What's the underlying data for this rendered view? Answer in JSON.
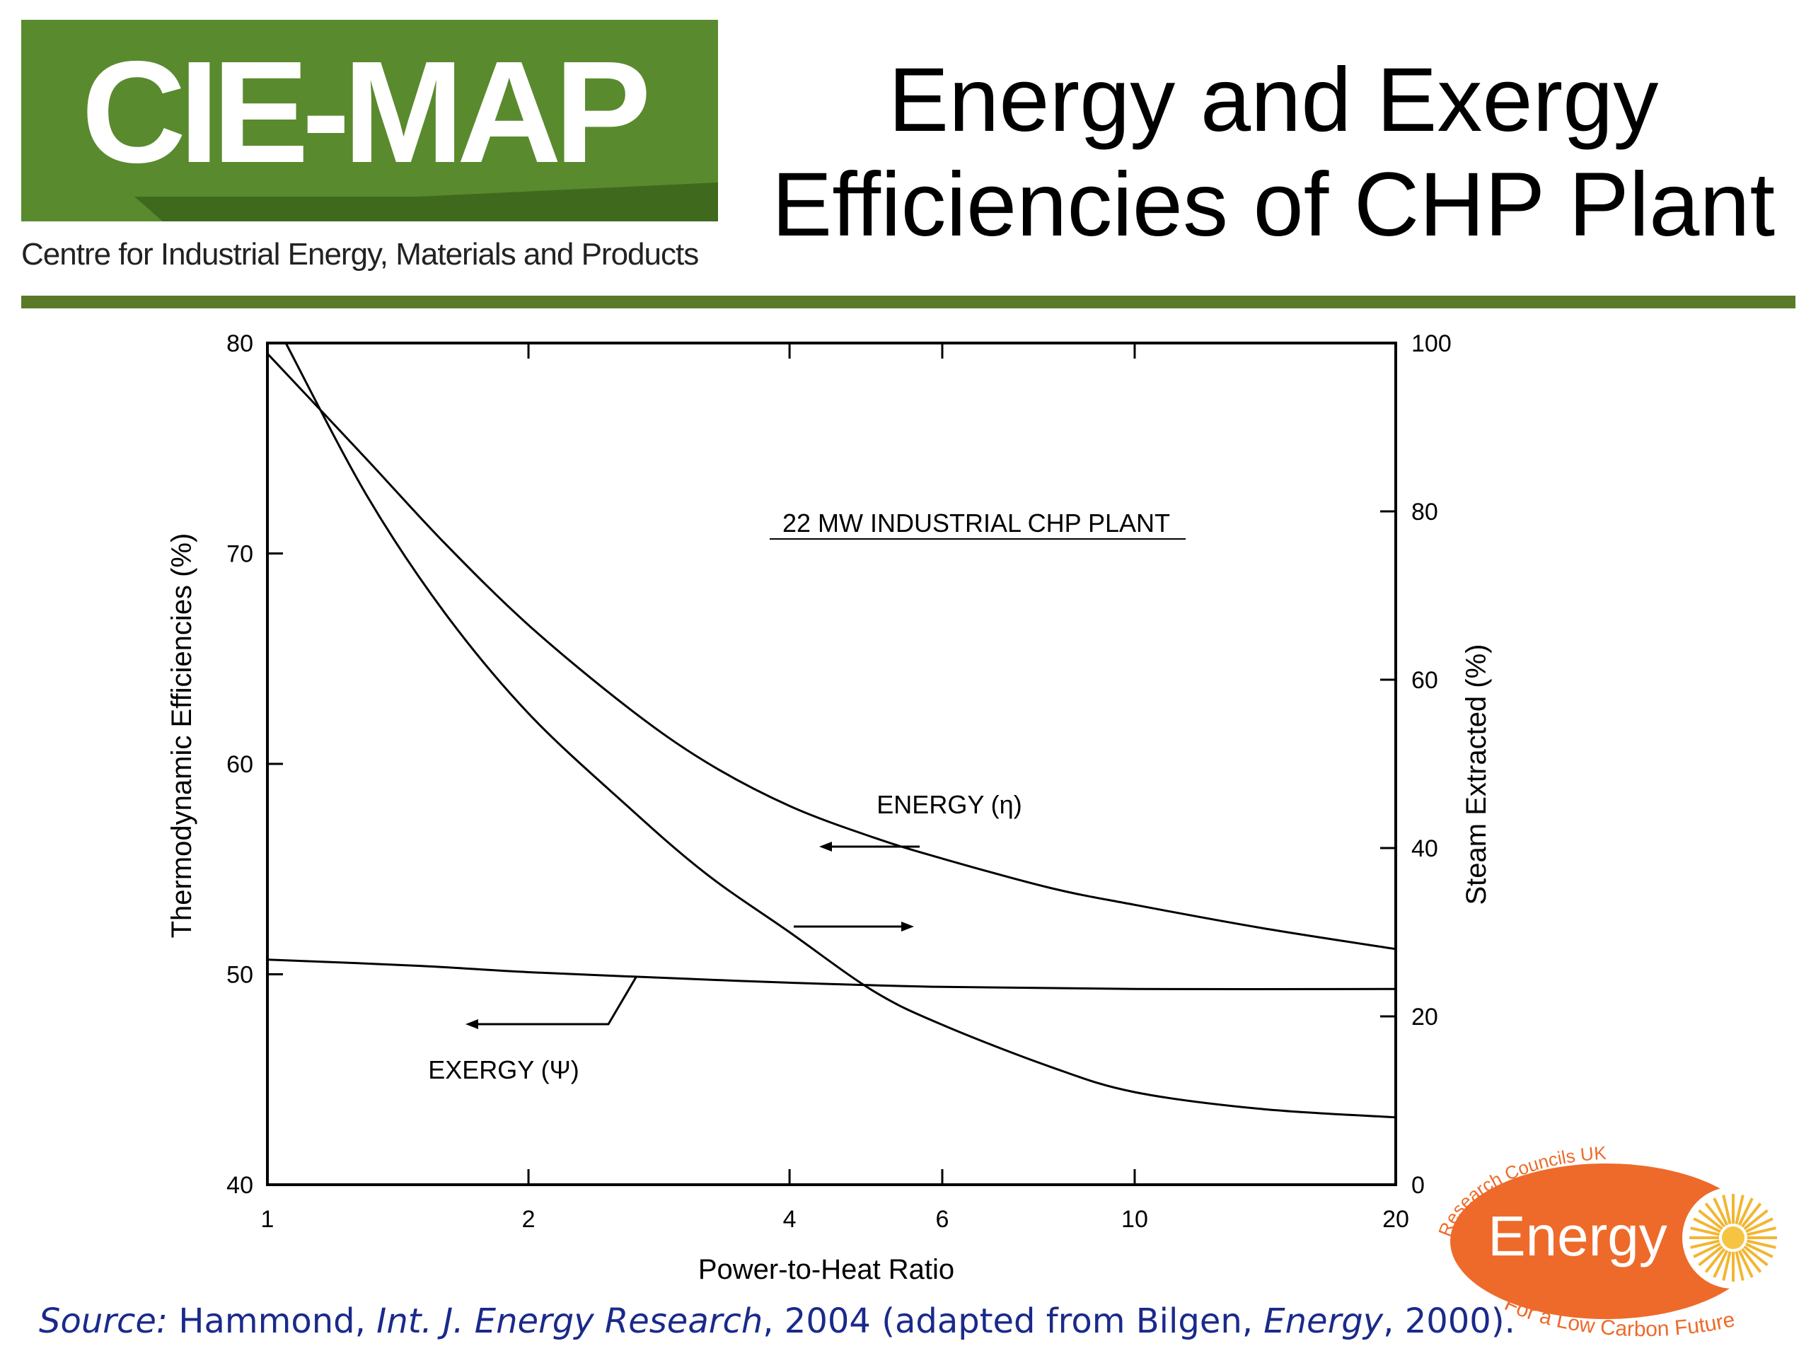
{
  "header": {
    "logo_text": "CIE-MAP",
    "logo_subtitle": "Centre for Industrial Energy, Materials and Products",
    "title_line1": "Energy and Exergy",
    "title_line2": "Efficiencies of CHP Plant",
    "accent_color": "#5a8a2e"
  },
  "chart_data": {
    "type": "line",
    "title": "22 MW  INDUSTRIAL  CHP  PLANT",
    "xlabel": "Power-to-Heat  Ratio",
    "ylabel": "Thermodynamic  Efficiencies  (%)",
    "y2label": "Steam  Extracted  (%)",
    "xscale": "log",
    "xlim": [
      1,
      20
    ],
    "ylim": [
      40,
      80
    ],
    "y2lim": [
      0,
      100
    ],
    "xticks": [
      1,
      2,
      4,
      6,
      10,
      20
    ],
    "yticks": [
      40,
      50,
      60,
      70,
      80
    ],
    "y2ticks": [
      0,
      20,
      40,
      60,
      80,
      100
    ],
    "grid": false,
    "series": [
      {
        "name": "ENERGY (η)",
        "axis": "left",
        "x": [
          1,
          1.3,
          1.6,
          2,
          2.6,
          3.2,
          4,
          5,
          6,
          8,
          10,
          14,
          20
        ],
        "y": [
          79.5,
          74.5,
          70.5,
          66.6,
          62.7,
          60.1,
          58.0,
          56.5,
          55.5,
          54.1,
          53.3,
          52.2,
          51.2
        ]
      },
      {
        "name": "EXERGY (Ψ)",
        "axis": "left",
        "x": [
          1,
          1.5,
          2,
          3,
          4,
          6,
          10,
          20
        ],
        "y": [
          50.7,
          50.4,
          50.1,
          49.8,
          49.6,
          49.4,
          49.3,
          49.3
        ]
      },
      {
        "name": "",
        "axis": "right",
        "x": [
          1.05,
          1.3,
          1.6,
          2,
          2.6,
          3.2,
          4,
          5,
          6,
          8,
          10,
          14,
          20
        ],
        "y": [
          100,
          82,
          68,
          56,
          45,
          37,
          30,
          23,
          19,
          14,
          11,
          9,
          8
        ]
      }
    ],
    "annotations": [
      "ENERGY (η)",
      "EXERGY (Ψ)"
    ]
  },
  "footer": {
    "source_label": "Source:",
    "source_author": " Hammond, ",
    "source_journal": "Int. J. Energy Research",
    "source_mid": ", 2004 (adapted from  Bilgen, ",
    "source_journal2": "Energy",
    "source_end": ", 2000).",
    "rcuk_top": "Research Councils UK",
    "rcuk_main": "Energy",
    "rcuk_bottom": "For a Low Carbon Future",
    "rcuk_color": "#ee6a2a"
  }
}
